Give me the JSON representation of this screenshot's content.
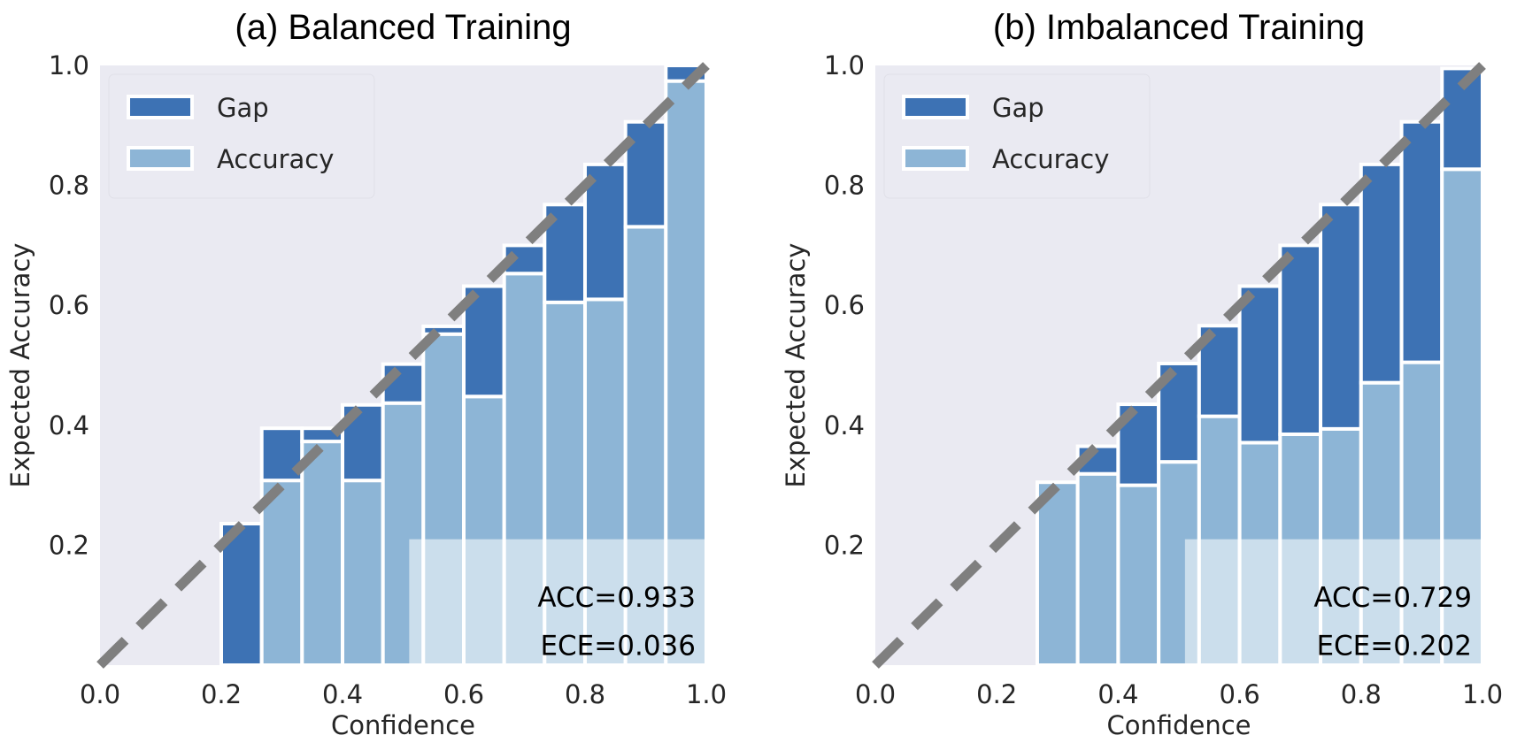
{
  "chart_data": [
    {
      "type": "bar",
      "title": "(a) Balanced Training",
      "xlabel": "Confidence",
      "ylabel": "Expected Accuracy",
      "xlim": [
        0,
        1
      ],
      "ylim": [
        0,
        1
      ],
      "xticks": [
        "0.0",
        "0.2",
        "0.4",
        "0.6",
        "0.8",
        "1.0"
      ],
      "yticks": [
        "0.2",
        "0.4",
        "0.6",
        "0.8",
        "1.0"
      ],
      "grid": false,
      "legend": {
        "position": "top-left",
        "entries": [
          "Gap",
          "Accuracy"
        ]
      },
      "bin_edges": [
        0.2,
        0.2667,
        0.3333,
        0.4,
        0.4667,
        0.5333,
        0.6,
        0.6667,
        0.7333,
        0.8,
        0.8667,
        0.9333,
        1.0
      ],
      "series": [
        {
          "name": "Accuracy",
          "values": [
            0.0,
            0.308,
            0.373,
            0.308,
            0.437,
            0.552,
            0.448,
            0.653,
            0.605,
            0.61,
            0.731,
            0.974
          ]
        },
        {
          "name": "Gap",
          "top_values": [
            0.236,
            0.395,
            0.395,
            0.434,
            0.502,
            0.565,
            0.632,
            0.7,
            0.768,
            0.835,
            0.906,
            1.0
          ]
        }
      ],
      "diagonal": {
        "from": [
          0,
          0
        ],
        "to": [
          1,
          1
        ],
        "style": "dashed"
      },
      "annotations": [
        "ACC=0.933",
        "ECE=0.036"
      ]
    },
    {
      "type": "bar",
      "title": "(b) Imbalanced Training",
      "xlabel": "Confidence",
      "ylabel": "Expected Accuracy",
      "xlim": [
        0,
        1
      ],
      "ylim": [
        0,
        1
      ],
      "xticks": [
        "0.0",
        "0.2",
        "0.4",
        "0.6",
        "0.8",
        "1.0"
      ],
      "yticks": [
        "0.2",
        "0.4",
        "0.6",
        "0.8",
        "1.0"
      ],
      "grid": false,
      "legend": {
        "position": "top-left",
        "entries": [
          "Gap",
          "Accuracy"
        ]
      },
      "bin_edges": [
        0.2667,
        0.3333,
        0.4,
        0.4667,
        0.5333,
        0.6,
        0.6667,
        0.7333,
        0.8,
        0.8667,
        0.9333,
        1.0
      ],
      "series": [
        {
          "name": "Accuracy",
          "values": [
            0.305,
            0.319,
            0.3,
            0.339,
            0.415,
            0.371,
            0.385,
            0.394,
            0.471,
            0.505,
            0.827
          ]
        },
        {
          "name": "Gap",
          "top_values": [
            0.305,
            0.365,
            0.435,
            0.503,
            0.566,
            0.632,
            0.7,
            0.768,
            0.835,
            0.906,
            0.995
          ]
        }
      ],
      "diagonal": {
        "from": [
          0,
          0
        ],
        "to": [
          1,
          1
        ],
        "style": "dashed"
      },
      "annotations": [
        "ACC=0.729",
        "ECE=0.202"
      ]
    }
  ],
  "colors": {
    "gap": "#3d72b4",
    "accuracy": "#8db5d6",
    "plot_background": "#eaeaf2",
    "diagonal": "#7f7f7f",
    "bar_edge": "#ffffff"
  }
}
